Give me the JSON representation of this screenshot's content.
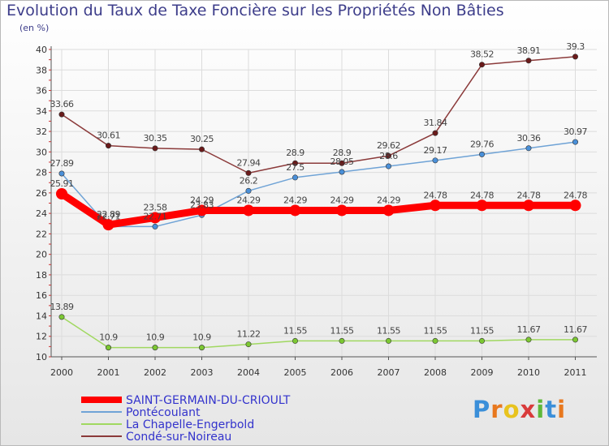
{
  "header": {
    "title": "Evolution du Taux de Taxe Foncière sur les Propriétés Non Bâties",
    "unit": "(en %)"
  },
  "logo": {
    "text": "Proxiti",
    "letter_colors": [
      "#3b8fd9",
      "#e8781e",
      "#e8c31e",
      "#d93b3b",
      "#5fb83a",
      "#3b8fd9",
      "#e8781e"
    ]
  },
  "chart_data": {
    "type": "line",
    "x": [
      "2000",
      "2001",
      "2002",
      "2003",
      "2004",
      "2005",
      "2006",
      "2007",
      "2008",
      "2009",
      "2010",
      "2011"
    ],
    "ylim": [
      10,
      40
    ],
    "yticks": [
      10,
      12,
      14,
      16,
      18,
      20,
      22,
      24,
      26,
      28,
      30,
      32,
      34,
      36,
      38,
      40
    ],
    "grid": true,
    "legend_position": "bottom-left",
    "series": [
      {
        "name": "SAINT-GERMAIN-DU-CRIOULT",
        "color": "#ff0000",
        "marker_color": "#ff0000",
        "label_color": "#444444",
        "width": 9,
        "values": [
          25.91,
          22.89,
          23.58,
          24.29,
          24.29,
          24.29,
          24.29,
          24.29,
          24.78,
          24.78,
          24.78,
          24.78
        ],
        "labels": [
          "25.91",
          "22.89",
          "23.58",
          "24.29",
          "24.29",
          "24.29",
          "24.29",
          "24.29",
          "24.78",
          "24.78",
          "24.78",
          "24.78"
        ]
      },
      {
        "name": "Pontécoulant",
        "color": "#6fa3d6",
        "marker_color": "#4a90d9",
        "label_color": "#444444",
        "width": 1.5,
        "values": [
          27.89,
          22.71,
          22.71,
          23.83,
          26.2,
          27.5,
          28.05,
          28.6,
          29.17,
          29.76,
          30.36,
          30.97
        ],
        "labels": [
          "27.89",
          "22.71",
          "22.71",
          "23.83",
          "26.2",
          "27.5",
          "28.05",
          "28.6",
          "29.17",
          "29.76",
          "30.36",
          "30.97"
        ]
      },
      {
        "name": "La Chapelle-Engerbold",
        "color": "#a0d860",
        "marker_color": "#7cc832",
        "label_color": "#444444",
        "width": 1.5,
        "values": [
          13.89,
          10.9,
          10.9,
          10.9,
          11.22,
          11.55,
          11.55,
          11.55,
          11.55,
          11.55,
          11.67,
          11.67
        ],
        "labels": [
          "13.89",
          "10.9",
          "10.9",
          "10.9",
          "11.22",
          "11.55",
          "11.55",
          "11.55",
          "11.55",
          "11.55",
          "11.67",
          "11.67"
        ]
      },
      {
        "name": "Condé-sur-Noireau",
        "color": "#8b3a3a",
        "marker_color": "#6a1a1a",
        "label_color": "#444444",
        "width": 1.5,
        "values": [
          33.66,
          30.61,
          30.35,
          30.25,
          27.94,
          28.9,
          28.9,
          29.62,
          31.84,
          38.52,
          38.91,
          39.3
        ],
        "labels": [
          "33.66",
          "30.61",
          "30.35",
          "30.25",
          "27.94",
          "28.9",
          "28.9",
          "29.62",
          "31.84",
          "38.52",
          "38.91",
          "39.3"
        ]
      }
    ],
    "legend_text_color": "#3333cc"
  }
}
